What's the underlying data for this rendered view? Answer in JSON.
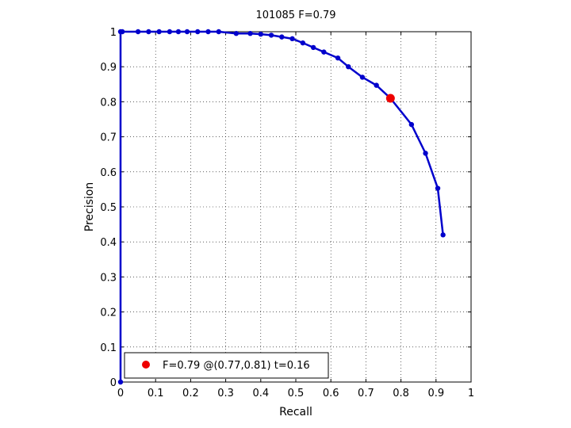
{
  "chart_data": {
    "type": "line",
    "title": "101085 F=0.79",
    "xlabel": "Recall",
    "ylabel": "Precision",
    "xlim": [
      0,
      1
    ],
    "ylim": [
      0,
      1
    ],
    "xticks": [
      0,
      0.1,
      0.2,
      0.3,
      0.4,
      0.5,
      0.6,
      0.7,
      0.8,
      0.9,
      1
    ],
    "yticks": [
      0,
      0.1,
      0.2,
      0.3,
      0.4,
      0.5,
      0.6,
      0.7,
      0.8,
      0.9,
      1
    ],
    "xtick_labels": [
      "0",
      "0.1",
      "0.2",
      "0.3",
      "0.4",
      "0.5",
      "0.6",
      "0.7",
      "0.8",
      "0.9",
      "1"
    ],
    "ytick_labels": [
      "0",
      "0.1",
      "0.2",
      "0.3",
      "0.4",
      "0.5",
      "0.6",
      "0.7",
      "0.8",
      "0.9",
      "1"
    ],
    "grid": true,
    "legend_position": "bottom-left",
    "series": [
      {
        "color": "#0000cc",
        "marker": "dot",
        "x": [
          0,
          0,
          0.005,
          0.05,
          0.08,
          0.11,
          0.14,
          0.165,
          0.19,
          0.22,
          0.25,
          0.28,
          0.33,
          0.37,
          0.4,
          0.43,
          0.46,
          0.49,
          0.52,
          0.55,
          0.58,
          0.62,
          0.65,
          0.69,
          0.73,
          0.77,
          0.83,
          0.87,
          0.905,
          0.92
        ],
        "y": [
          0,
          1,
          1,
          1,
          1,
          1,
          1,
          1,
          1,
          1,
          1,
          1,
          0.995,
          0.995,
          0.993,
          0.99,
          0.985,
          0.98,
          0.968,
          0.955,
          0.942,
          0.925,
          0.9,
          0.87,
          0.847,
          0.81,
          0.735,
          0.653,
          0.553,
          0.42
        ]
      }
    ],
    "highlight_point": {
      "x": 0.77,
      "y": 0.81,
      "color": "#ee0000"
    },
    "legend": {
      "label": "F=0.79 @(0.77,0.81) t=0.16"
    }
  }
}
